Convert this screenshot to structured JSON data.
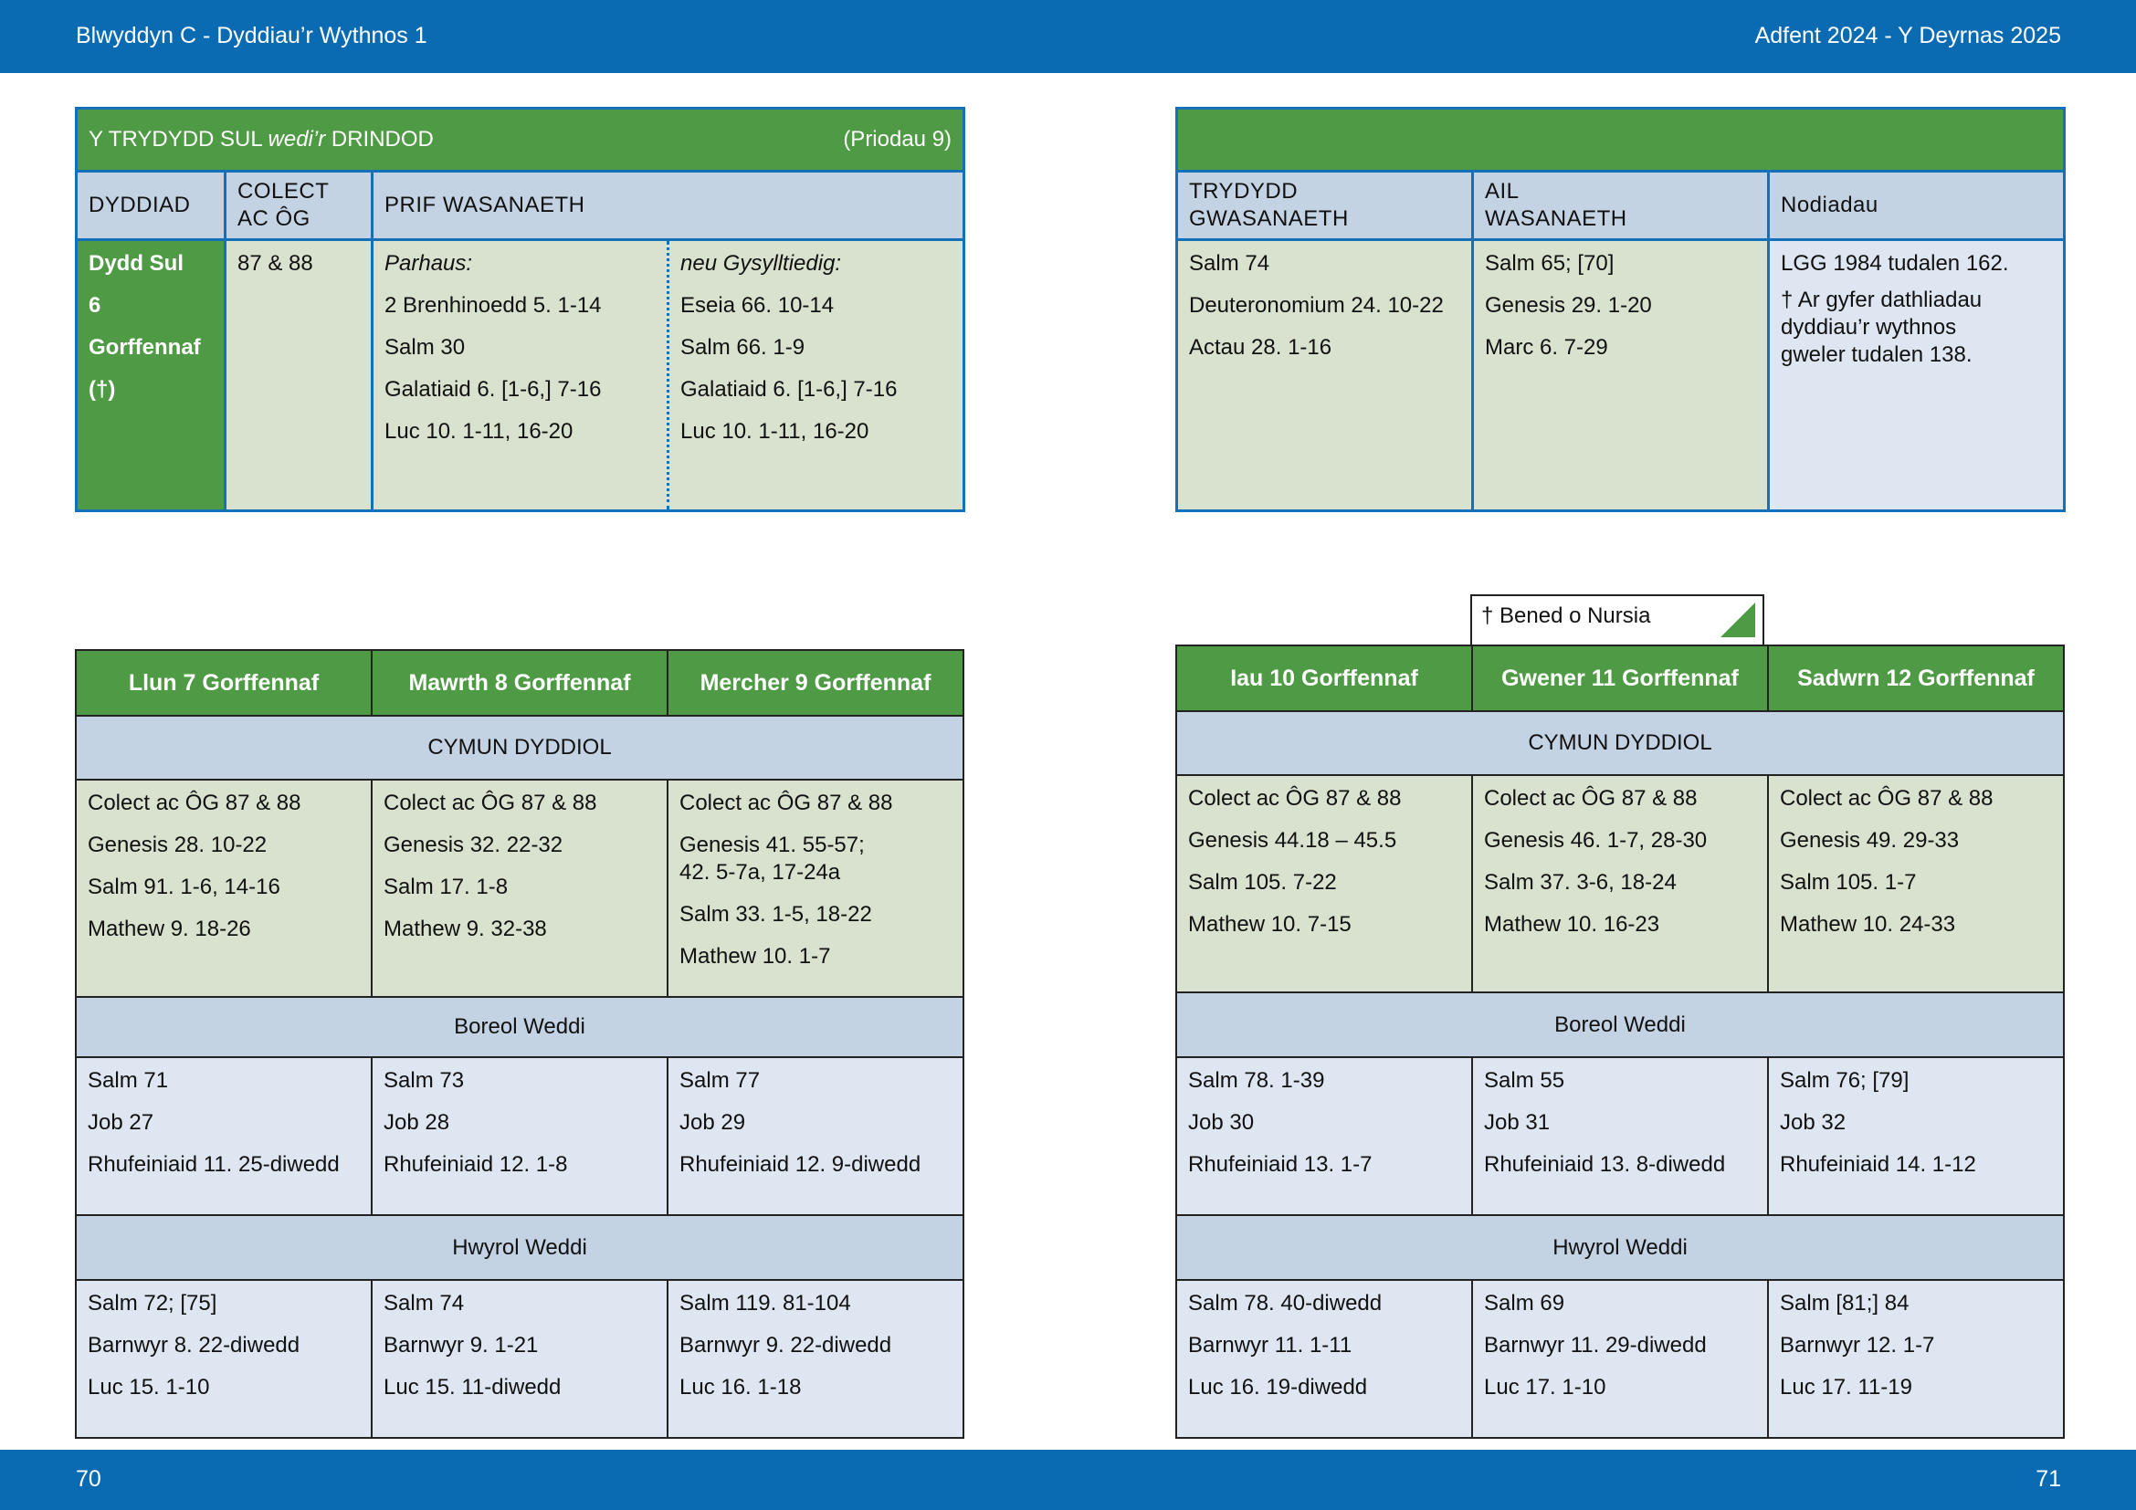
{
  "header": {
    "left": "Blwyddyn  C - Dyddiau’r Wythnos 1",
    "right": "Adfent  2024 - Y Deyrnas 2025"
  },
  "footer": {
    "left_page": "70",
    "right_page": "71"
  },
  "sunday": {
    "title_prefix": "Y TRYDYDD SUL ",
    "title_em": "wedi’r",
    "title_suffix": " DRINDOD",
    "proper": "(Priodau 9)",
    "columns": {
      "date": "DYDDIAD",
      "collect_l1": "COLECT",
      "collect_l2": "AC ÔG",
      "main": "PRIF WASANAETH"
    },
    "date_lines": [
      "Dydd Sul",
      "6",
      "Gorffennaf",
      "(†)"
    ],
    "collect": "87 & 88",
    "continuous": {
      "label": "Parhaus:",
      "readings": [
        "2 Brenhinoedd 5. 1-14",
        "Salm 30",
        "Galatiaid 6. [1-6,] 7-16",
        "Luc 10. 1-11, 16-20"
      ]
    },
    "related": {
      "label": "neu Gysylltiedig:",
      "readings": [
        "Eseia 66. 10-14",
        "Salm 66. 1-9",
        "Galatiaid 6. [1-6,] 7-16",
        "Luc 10. 1-11, 16-20"
      ]
    },
    "right_columns": {
      "third_l1": "TRYDYDD",
      "third_l2": "GWASANAETH",
      "second_l1": "AIL",
      "second_l2": "WASANAETH",
      "notes": "Nodiadau"
    },
    "third_service": [
      "Salm 74",
      "Deuteronomium 24. 10-22",
      "Actau 28. 1-16"
    ],
    "second_service": [
      "Salm 65; [70]",
      "Genesis 29. 1-20",
      "Marc 6. 7-29"
    ],
    "notes": {
      "line1": "LGG 1984 tudalen 162.",
      "line2": [
        "† Ar gyfer dathliadau",
        "dyddiau’r wythnos",
        "gweler tudalen 138."
      ]
    }
  },
  "sections": {
    "eucharist": "CYMUN DYDDIOL",
    "morning": "Boreol Weddi",
    "evening": "Hwyrol Weddi"
  },
  "saint_tab": "† Bened o Nursia",
  "weekdays_left": [
    {
      "day": "Llun 7 Gorffennaf",
      "eucharist": [
        "Colect ac ÔG 87 & 88",
        "Genesis 28. 10-22",
        "Salm 91. 1-6, 14-16",
        "Mathew 9. 18-26"
      ],
      "morning": [
        "Salm 71",
        "Job 27",
        "Rhufeiniaid 11. 25-diwedd"
      ],
      "evening": [
        "Salm 72; [75]",
        "Barnwyr 8. 22-diwedd",
        "Luc 15. 1-10"
      ]
    },
    {
      "day": "Mawrth 8 Gorffennaf",
      "eucharist": [
        "Colect ac ÔG 87 & 88",
        "Genesis 32. 22-32",
        "Salm 17. 1-8",
        "Mathew 9. 32-38"
      ],
      "morning": [
        "Salm 73",
        "Job 28",
        "Rhufeiniaid 12. 1-8"
      ],
      "evening": [
        "Salm 74",
        "Barnwyr 9. 1-21",
        "Luc 15. 11-diwedd"
      ]
    },
    {
      "day": "Mercher 9 Gorffennaf",
      "eucharist_first": "Colect ac ÔG 87 & 88",
      "eucharist_genesis_l1": "Genesis 41. 55-57;",
      "eucharist_genesis_l2": "42. 5-7a, 17-24a",
      "eucharist_rest": [
        "Salm 33. 1-5, 18-22",
        "Mathew 10. 1-7"
      ],
      "morning": [
        "Salm 77",
        "Job 29",
        "Rhufeiniaid 12. 9-diwedd"
      ],
      "evening": [
        "Salm 119. 81-104",
        "Barnwyr 9. 22-diwedd",
        "Luc 16. 1-18"
      ]
    }
  ],
  "weekdays_right": [
    {
      "day": "Iau 10 Gorffennaf",
      "eucharist": [
        "Colect ac ÔG 87 & 88",
        "Genesis 44.18 – 45.5",
        "Salm 105. 7-22",
        "Mathew 10. 7-15"
      ],
      "morning": [
        "Salm 78. 1-39",
        "Job 30",
        "Rhufeiniaid 13. 1-7"
      ],
      "evening": [
        "Salm 78. 40-diwedd",
        "Barnwyr 11. 1-11",
        "Luc 16. 19-diwedd"
      ]
    },
    {
      "day": "Gwener 11 Gorffennaf",
      "eucharist": [
        "Colect ac ÔG 87 & 88",
        "Genesis 46. 1-7, 28-30",
        "Salm 37. 3-6, 18-24",
        "Mathew 10. 16-23"
      ],
      "morning": [
        "Salm 55",
        "Job 31",
        "Rhufeiniaid 13. 8-diwedd"
      ],
      "evening": [
        "Salm 69",
        "Barnwyr 11. 29-diwedd",
        "Luc 17. 1-10"
      ]
    },
    {
      "day": "Sadwrn 12 Gorffennaf",
      "eucharist": [
        "Colect ac ÔG 87 & 88",
        "Genesis 49. 29-33",
        "Salm 105. 1-7",
        "Mathew 10. 24-33"
      ],
      "morning": [
        "Salm 76; [79]",
        "Job 32",
        "Rhufeiniaid 14. 1-12"
      ],
      "evening": [
        "Salm [81;] 84",
        "Barnwyr 12. 1-7",
        "Luc 17. 11-19"
      ]
    }
  ],
  "colors": {
    "band": "#0a6bb3",
    "green": "#4f9a45",
    "header_blue": "#c4d3e4",
    "sage": "#d9e2cf",
    "light_blue": "#dde6f1",
    "border_blue": "#1470b9"
  }
}
